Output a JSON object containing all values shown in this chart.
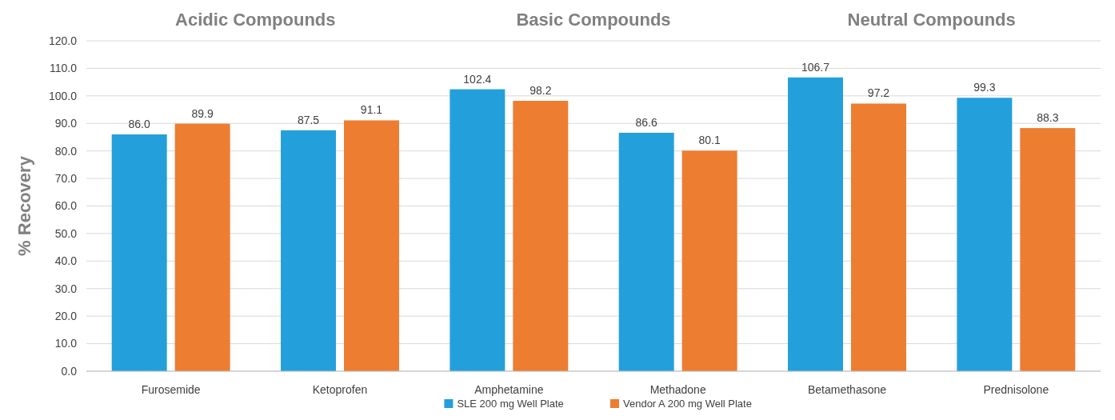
{
  "chart_data": {
    "type": "bar",
    "ylabel": "% Recovery",
    "categories": [
      "Furosemide",
      "Ketoprofen",
      "Amphetamine",
      "Methadone",
      "Betamethasone",
      "Prednisolone"
    ],
    "series": [
      {
        "name": "SLE 200 mg Well Plate",
        "color": "#23a0db",
        "values": [
          86.0,
          87.5,
          102.4,
          86.6,
          106.7,
          99.3
        ],
        "value_labels": [
          "86.0",
          "87.5",
          "102.4",
          "86.6",
          "106.7",
          "99.3"
        ]
      },
      {
        "name": "Vendor A 200 mg Well Plate",
        "color": "#ed7d31",
        "values": [
          89.9,
          91.1,
          98.2,
          80.1,
          97.2,
          88.3
        ],
        "value_labels": [
          "89.9",
          "91.1",
          "98.2",
          "80.1",
          "97.2",
          "88.3"
        ]
      }
    ],
    "ylim": [
      0,
      120
    ],
    "yticks": [
      {
        "value": 0,
        "label": "0.0"
      },
      {
        "value": 10,
        "label": "10.0"
      },
      {
        "value": 20,
        "label": "20.0"
      },
      {
        "value": 30,
        "label": "30.0"
      },
      {
        "value": 40,
        "label": "40.0"
      },
      {
        "value": 50,
        "label": "50.0"
      },
      {
        "value": 60,
        "label": "60.0"
      },
      {
        "value": 70,
        "label": "70.0"
      },
      {
        "value": 80,
        "label": "80.0"
      },
      {
        "value": 90,
        "label": "90.0"
      },
      {
        "value": 100,
        "label": "100.0"
      },
      {
        "value": 110,
        "label": "110.0"
      },
      {
        "value": 120,
        "label": "120.0"
      }
    ],
    "grid": "y",
    "legend": "bottom",
    "annotations": [
      "Acidic Compounds",
      "Basic Compounds",
      "Neutral Compounds"
    ]
  }
}
